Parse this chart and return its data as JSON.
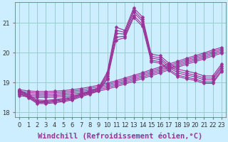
{
  "xlabel": "Windchill (Refroidissement éolien,°C)",
  "ylabel": "",
  "background_color": "#cceeff",
  "grid_color": "#99cccc",
  "line_color": "#993399",
  "xlim": [
    -0.5,
    23.5
  ],
  "ylim": [
    17.85,
    21.7
  ],
  "yticks": [
    18,
    19,
    20,
    21
  ],
  "xticks": [
    0,
    1,
    2,
    3,
    4,
    5,
    6,
    7,
    8,
    9,
    10,
    11,
    12,
    13,
    14,
    15,
    16,
    17,
    18,
    19,
    20,
    21,
    22,
    23
  ],
  "series": [
    [
      18.75,
      18.6,
      18.42,
      18.4,
      18.43,
      18.47,
      18.52,
      18.63,
      18.72,
      18.82,
      19.35,
      20.85,
      20.75,
      21.5,
      21.2,
      19.95,
      19.9,
      19.65,
      19.45,
      19.38,
      19.32,
      19.22,
      19.22,
      19.62
    ],
    [
      18.72,
      18.57,
      18.38,
      18.37,
      18.4,
      18.44,
      18.49,
      18.6,
      18.69,
      18.79,
      19.28,
      20.75,
      20.68,
      21.42,
      21.12,
      19.88,
      19.83,
      19.58,
      19.38,
      19.31,
      19.25,
      19.15,
      19.15,
      19.55
    ],
    [
      18.7,
      18.55,
      18.36,
      18.35,
      18.38,
      18.42,
      18.47,
      18.58,
      18.67,
      18.77,
      19.22,
      20.65,
      20.62,
      21.35,
      21.05,
      19.82,
      19.77,
      19.52,
      19.32,
      19.25,
      19.19,
      19.09,
      19.09,
      19.49
    ],
    [
      18.66,
      18.52,
      18.33,
      18.32,
      18.35,
      18.39,
      18.44,
      18.55,
      18.64,
      18.74,
      19.15,
      20.52,
      20.55,
      21.25,
      20.95,
      19.75,
      19.7,
      19.45,
      19.25,
      19.18,
      19.12,
      19.02,
      19.02,
      19.42
    ],
    [
      18.63,
      18.49,
      18.3,
      18.29,
      18.32,
      18.36,
      18.41,
      18.52,
      18.61,
      18.71,
      19.1,
      20.42,
      20.5,
      21.18,
      20.88,
      19.7,
      19.65,
      19.4,
      19.2,
      19.13,
      19.07,
      18.97,
      18.97,
      19.37
    ]
  ],
  "linear_series": [
    [
      18.76,
      18.72,
      18.7,
      18.7,
      18.71,
      18.73,
      18.76,
      18.8,
      18.85,
      18.91,
      18.98,
      19.06,
      19.15,
      19.24,
      19.33,
      19.43,
      19.52,
      19.62,
      19.71,
      19.81,
      19.9,
      19.99,
      20.09,
      20.18
    ],
    [
      18.71,
      18.67,
      18.65,
      18.65,
      18.66,
      18.68,
      18.71,
      18.75,
      18.8,
      18.86,
      18.93,
      19.01,
      19.1,
      19.19,
      19.28,
      19.38,
      19.47,
      19.57,
      19.66,
      19.76,
      19.85,
      19.94,
      20.04,
      20.13
    ],
    [
      18.66,
      18.62,
      18.6,
      18.6,
      18.61,
      18.63,
      18.66,
      18.7,
      18.75,
      18.81,
      18.88,
      18.96,
      19.05,
      19.14,
      19.23,
      19.33,
      19.42,
      19.52,
      19.61,
      19.71,
      19.8,
      19.89,
      19.99,
      20.08
    ],
    [
      18.61,
      18.57,
      18.55,
      18.55,
      18.56,
      18.58,
      18.61,
      18.65,
      18.7,
      18.76,
      18.83,
      18.91,
      19.0,
      19.09,
      19.18,
      19.28,
      19.37,
      19.47,
      19.56,
      19.66,
      19.75,
      19.84,
      19.94,
      20.03
    ],
    [
      18.56,
      18.52,
      18.5,
      18.5,
      18.51,
      18.53,
      18.56,
      18.6,
      18.65,
      18.71,
      18.78,
      18.86,
      18.95,
      19.04,
      19.13,
      19.23,
      19.32,
      19.42,
      19.51,
      19.61,
      19.7,
      19.79,
      19.89,
      19.98
    ]
  ],
  "markersize": 2.5,
  "tick_fontsize": 6,
  "xlabel_fontsize": 7.5
}
